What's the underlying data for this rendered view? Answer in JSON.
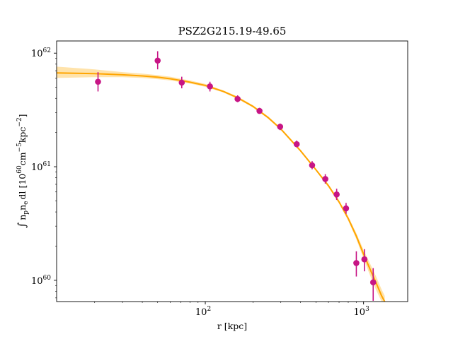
{
  "chart_data": {
    "type": "scatter",
    "title": "PSZ2G215.19-49.65",
    "xlabel": "r [kpc]",
    "ylabel": "∫ n_p n_e dl [10^60 cm^-5 kpc^-2]",
    "ylabel_parts": {
      "integral": "∫",
      "np": "n",
      "np_sub": "p",
      "ne": "n",
      "ne_sub": "e",
      "dl": "dl [10",
      "exp1": "60",
      "cm": "cm",
      "exp2": "−5",
      "kpc": "kpc",
      "exp3": "−2",
      "close": "]"
    },
    "x_scale": "log",
    "y_scale": "log",
    "xlim": [
      11.5,
      1900
    ],
    "ylim": [
      6.5e+59,
      1.28e+62
    ],
    "x_ticks": [
      {
        "value": 100,
        "base": "10",
        "exp": "2"
      },
      {
        "value": 1000,
        "base": "10",
        "exp": "3"
      }
    ],
    "y_ticks": [
      {
        "value": 1e+60,
        "base": "10",
        "exp": "60"
      },
      {
        "value": 1e+61,
        "base": "10",
        "exp": "61"
      },
      {
        "value": 1e+62,
        "base": "10",
        "exp": "62"
      }
    ],
    "data_points": [
      {
        "x": 21,
        "y": 5.6e+61,
        "ylo": 4.6e+61,
        "yhi": 6.8e+61
      },
      {
        "x": 50,
        "y": 8.6e+61,
        "ylo": 7.2e+61,
        "yhi": 1.04e+62
      },
      {
        "x": 71,
        "y": 5.5e+61,
        "ylo": 4.9e+61,
        "yhi": 6.2e+61
      },
      {
        "x": 107,
        "y": 5.1e+61,
        "ylo": 4.6e+61,
        "yhi": 5.6e+61
      },
      {
        "x": 160,
        "y": 3.95e+61,
        "ylo": 3.7e+61,
        "yhi": 4.25e+61
      },
      {
        "x": 220,
        "y": 3.1e+61,
        "ylo": 2.95e+61,
        "yhi": 3.3e+61
      },
      {
        "x": 297,
        "y": 2.25e+61,
        "ylo": 2.1e+61,
        "yhi": 2.4e+61
      },
      {
        "x": 378,
        "y": 1.58e+61,
        "ylo": 1.48e+61,
        "yhi": 1.7e+61
      },
      {
        "x": 473,
        "y": 1.03e+61,
        "ylo": 9.5e+60,
        "yhi": 1.12e+61
      },
      {
        "x": 573,
        "y": 7.8e+60,
        "ylo": 7.1e+60,
        "yhi": 8.6e+60
      },
      {
        "x": 676,
        "y": 5.7e+60,
        "ylo": 5.1e+60,
        "yhi": 6.4e+60
      },
      {
        "x": 775,
        "y": 4.3e+60,
        "ylo": 3.85e+60,
        "yhi": 4.8e+60
      },
      {
        "x": 900,
        "y": 1.42e+60,
        "ylo": 1.08e+60,
        "yhi": 1.8e+60
      },
      {
        "x": 1012,
        "y": 1.53e+60,
        "ylo": 1.2e+60,
        "yhi": 1.88e+60
      },
      {
        "x": 1150,
        "y": 9.6e+59,
        "ylo": 6.6e+59,
        "yhi": 1.28e+60
      }
    ],
    "model_curve": {
      "x": [
        11.5,
        20,
        30,
        40,
        50,
        60,
        70,
        80,
        100,
        130,
        160,
        200,
        250,
        300,
        400,
        500,
        600,
        700,
        800,
        900,
        1000,
        1100,
        1200,
        1300,
        1360
      ],
      "y": [
        6.7e+61,
        6.6e+61,
        6.45e+61,
        6.3e+61,
        6.15e+61,
        5.95e+61,
        5.75e+61,
        5.55e+61,
        5.2e+61,
        4.6e+61,
        4.05e+61,
        3.4e+61,
        2.7e+61,
        2.15e+61,
        1.38e+61,
        9.4e+60,
        6.8e+60,
        4.9e+60,
        3.5e+60,
        2.45e+60,
        1.7e+60,
        1.25e+60,
        9.5e+59,
        7.3e+59,
        6.5e+59
      ],
      "lo": [
        6.05e+61,
        6.15e+61,
        6.15e+61,
        6.05e+61,
        5.9e+61,
        5.75e+61,
        5.55e+61,
        5.4e+61,
        5.05e+61,
        4.5e+61,
        3.95e+61,
        3.32e+61,
        2.64e+61,
        2.1e+61,
        1.35e+61,
        9.2e+60,
        6.6e+60,
        4.75e+60,
        3.35e+60,
        2.3e+60,
        1.55e+60,
        1.1e+60,
        8.2e+59,
        6.5e+59,
        6.5e+59
      ],
      "hi": [
        7.6e+61,
        7.2e+61,
        6.8e+61,
        6.6e+61,
        6.4e+61,
        6.2e+61,
        5.95e+61,
        5.75e+61,
        5.35e+61,
        4.7e+61,
        4.15e+61,
        3.48e+61,
        2.77e+61,
        2.2e+61,
        1.41e+61,
        9.6e+60,
        7e+60,
        5.05e+60,
        3.65e+60,
        2.6e+60,
        1.85e+60,
        1.4e+60,
        1.08e+60,
        8.3e+59,
        7.3e+59
      ]
    },
    "colors": {
      "points": "#c71585",
      "curve": "#ffa500",
      "band": "#ffcc66"
    },
    "grid": false,
    "legend": "none"
  }
}
